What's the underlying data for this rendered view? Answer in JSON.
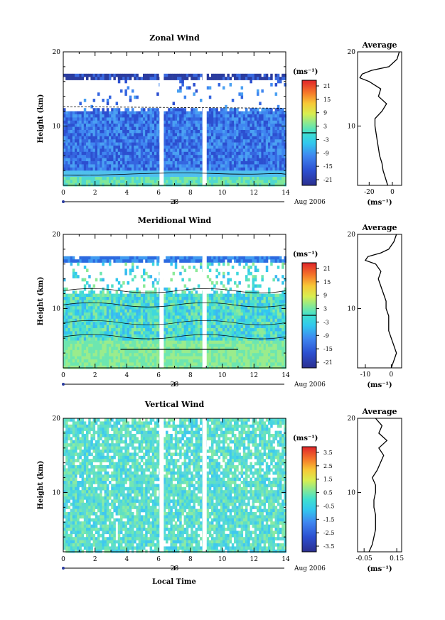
{
  "figure": {
    "xlabel": "Local Time",
    "date_marker": "28",
    "date_label": "Aug 2006",
    "colorbar_unit": "(ms⁻¹)",
    "profile_unit": "(ms⁻¹)",
    "ylabel": "Height (km)"
  },
  "chart_data": [
    {
      "type": "heatmap",
      "title": "Zonal Wind",
      "xlabel": "Local Time",
      "ylabel": "Height (km)",
      "xlim": [
        0,
        14
      ],
      "ylim": [
        2,
        20
      ],
      "xticks": [
        "0",
        "2",
        "4",
        "6",
        "8",
        "10",
        "12",
        "14"
      ],
      "yticks": [
        "10",
        "20"
      ],
      "colorbar": {
        "ticks": [
          "21",
          "15",
          "9",
          "3",
          "-3",
          "-9",
          "-15",
          "-21"
        ],
        "zero_line": true
      },
      "data_gaps_x": [
        6.1,
        8.8
      ],
      "profile": {
        "title": "Average",
        "xlim": [
          -30,
          8
        ],
        "xticks": [
          "-20",
          "0"
        ],
        "ylim": [
          2,
          20
        ],
        "yticks": [
          "10",
          "20"
        ],
        "heights": [
          2,
          3,
          4,
          5,
          6,
          7,
          8,
          9,
          10,
          11,
          12,
          13,
          14,
          15,
          16,
          16.5,
          17,
          17.5,
          18,
          19,
          20
        ],
        "values": [
          -4,
          -6,
          -8,
          -9,
          -11,
          -12,
          -13,
          -14,
          -15,
          -15,
          -9,
          -5,
          -12,
          -10,
          -20,
          -28,
          -26,
          -18,
          -3,
          4,
          6
        ]
      }
    },
    {
      "type": "heatmap",
      "title": "Meridional Wind",
      "xlabel": "Local Time",
      "ylabel": "Height (km)",
      "xlim": [
        0,
        14
      ],
      "ylim": [
        2,
        20
      ],
      "xticks": [
        "0",
        "2",
        "4",
        "6",
        "8",
        "10",
        "12",
        "14"
      ],
      "yticks": [
        "10",
        "20"
      ],
      "colorbar": {
        "ticks": [
          "21",
          "15",
          "9",
          "3",
          "-3",
          "-9",
          "-15",
          "-21"
        ],
        "zero_line": true
      },
      "data_gaps_x": [
        6.1,
        8.8
      ],
      "profile": {
        "title": "Average",
        "xlim": [
          -13,
          4
        ],
        "xticks": [
          "-10",
          "0"
        ],
        "ylim": [
          2,
          20
        ],
        "yticks": [
          "10",
          "20"
        ],
        "heights": [
          2,
          3,
          4,
          5,
          6,
          7,
          8,
          9,
          10,
          11,
          12,
          13,
          14,
          15,
          16,
          16.5,
          17,
          17.5,
          18,
          19,
          20
        ],
        "values": [
          0,
          1,
          2,
          1,
          0,
          -1,
          -1,
          -1,
          -2,
          -2,
          -3,
          -4,
          -5,
          -4,
          -6,
          -10,
          -9,
          -4,
          -1,
          1,
          2
        ]
      }
    },
    {
      "type": "heatmap",
      "title": "Vertical Wind",
      "xlabel": "Local Time",
      "ylabel": "Height (km)",
      "xlim": [
        0,
        14
      ],
      "ylim": [
        2,
        20
      ],
      "xticks": [
        "0",
        "2",
        "4",
        "6",
        "8",
        "10",
        "12",
        "14"
      ],
      "yticks": [
        "10",
        "20"
      ],
      "colorbar": {
        "ticks": [
          "3.5",
          "2.5",
          "1.5",
          "0.5",
          "-0.5",
          "-1.5",
          "-2.5",
          "-3.5"
        ],
        "zero_line": false
      },
      "data_gaps_x": [
        6.1,
        8.8
      ],
      "profile": {
        "title": "Average",
        "xlim": [
          -0.09,
          0.18
        ],
        "xticks": [
          "-0.05",
          "0.15"
        ],
        "ylim": [
          2,
          20
        ],
        "yticks": [
          "10",
          "20"
        ],
        "heights": [
          2,
          3,
          4,
          5,
          6,
          7,
          8,
          9,
          10,
          11,
          12,
          13,
          14,
          15,
          16,
          17,
          18,
          19,
          20
        ],
        "values": [
          -0.02,
          0,
          0.01,
          0.02,
          0.02,
          0.02,
          0.01,
          0.01,
          0.02,
          0.02,
          0.0,
          0.03,
          0.05,
          0.07,
          0.04,
          0.09,
          0.04,
          0.06,
          0.02
        ]
      }
    }
  ]
}
